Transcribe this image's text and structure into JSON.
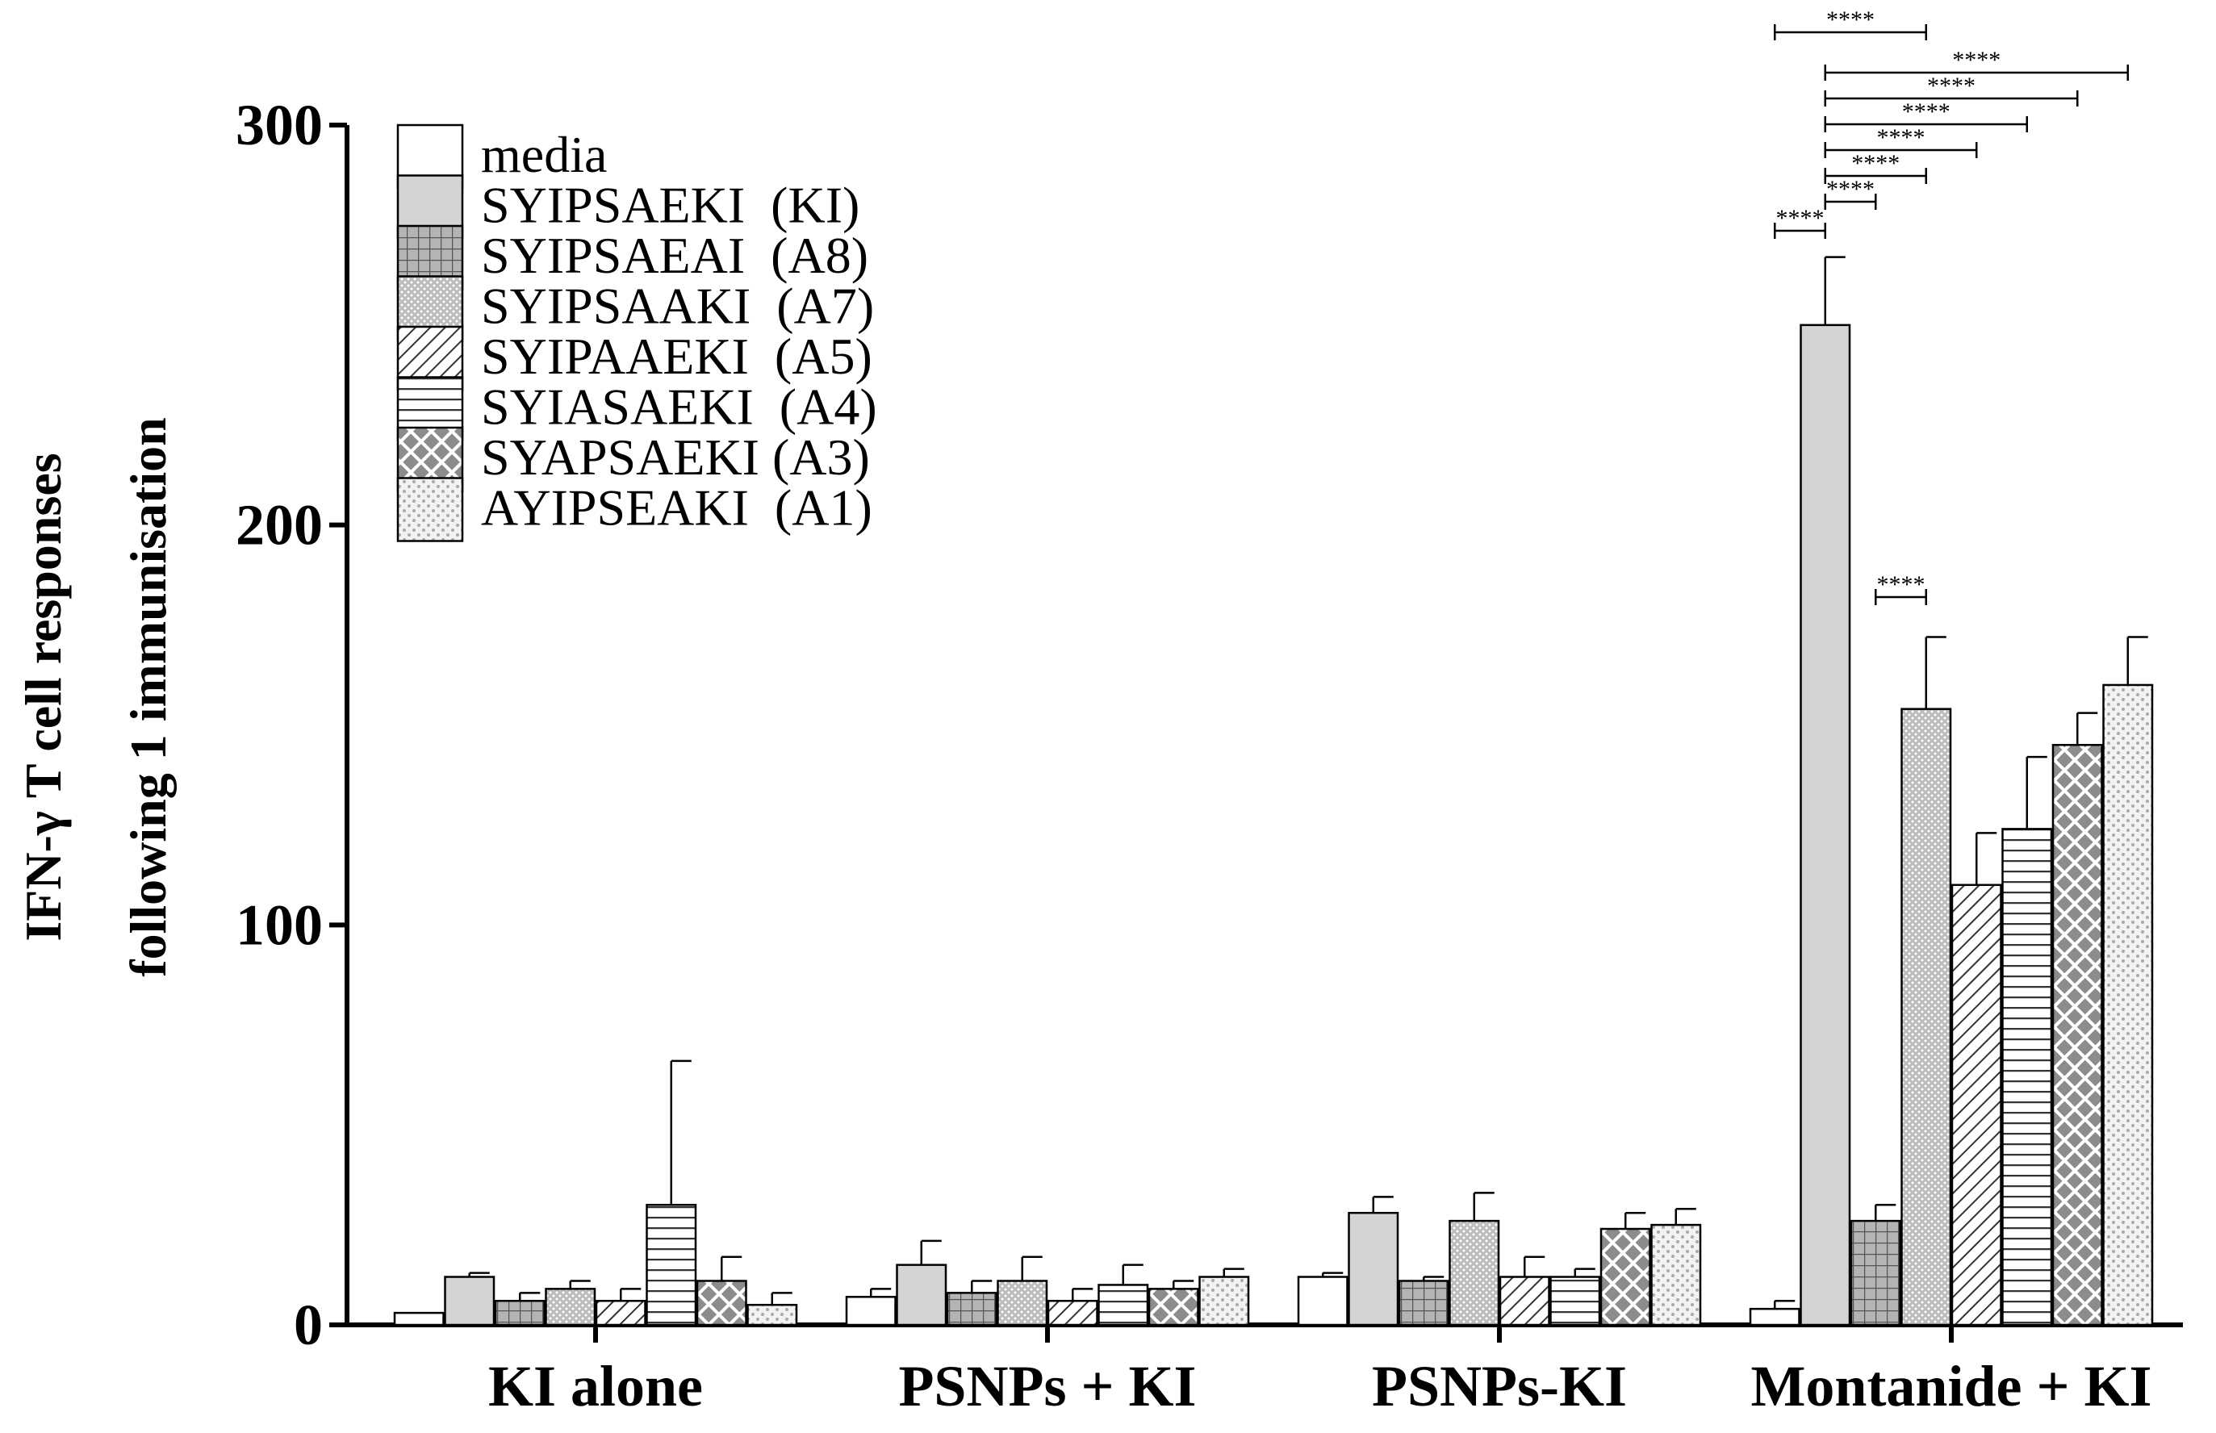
{
  "chart_data": {
    "type": "bar",
    "ylabel_lines": [
      "IFN-γ T cell responses",
      "following 1 immunisation"
    ],
    "xlabel": "",
    "ylim": [
      0,
      300
    ],
    "yticks": [
      0,
      100,
      200,
      300
    ],
    "grid": false,
    "legend_position": "top-left",
    "categories": [
      "KI alone",
      "PSNPs + KI",
      "PSNPs-KI",
      "Montanide + KI"
    ],
    "series": [
      {
        "name": "media",
        "pattern": "white",
        "values": [
          3,
          7,
          12,
          4
        ],
        "errors": [
          0,
          2,
          1,
          2
        ]
      },
      {
        "name": "SYIPSAEKI  (KI)",
        "pattern": "gray",
        "values": [
          12,
          15,
          28,
          250
        ],
        "errors": [
          1,
          6,
          4,
          17
        ]
      },
      {
        "name": "SYIPSAEAI  (A8)",
        "pattern": "grid",
        "values": [
          6,
          8,
          11,
          26
        ],
        "errors": [
          2,
          3,
          1,
          4
        ]
      },
      {
        "name": "SYIPSAAKI  (A7)",
        "pattern": "dots",
        "values": [
          9,
          11,
          26,
          154
        ],
        "errors": [
          2,
          6,
          7,
          18
        ]
      },
      {
        "name": "SYIPAAEKI  (A5)",
        "pattern": "diagonal",
        "values": [
          6,
          6,
          12,
          110
        ],
        "errors": [
          3,
          3,
          5,
          13
        ]
      },
      {
        "name": "SYIASAEKI  (A4)",
        "pattern": "horizontal",
        "values": [
          30,
          10,
          12,
          124
        ],
        "errors": [
          36,
          5,
          2,
          18
        ]
      },
      {
        "name": "SYAPSAEKI (A3)",
        "pattern": "crosshatch",
        "values": [
          11,
          9,
          24,
          145
        ],
        "errors": [
          6,
          2,
          4,
          8
        ]
      },
      {
        "name": "AYIPSEAKI  (A1)",
        "pattern": "light",
        "values": [
          5,
          12,
          25,
          160
        ],
        "errors": [
          3,
          2,
          4,
          12
        ]
      }
    ],
    "significance": [
      {
        "group": "Montanide + KI",
        "from": 0,
        "to": 1,
        "label": "****"
      },
      {
        "group": "Montanide + KI",
        "from": 1,
        "to": 2,
        "label": "****"
      },
      {
        "group": "Montanide + KI",
        "from": 1,
        "to": 3,
        "label": "****"
      },
      {
        "group": "Montanide + KI",
        "from": 1,
        "to": 4,
        "label": "****"
      },
      {
        "group": "Montanide + KI",
        "from": 1,
        "to": 5,
        "label": "****"
      },
      {
        "group": "Montanide + KI",
        "from": 1,
        "to": 6,
        "label": "****"
      },
      {
        "group": "Montanide + KI",
        "from": 1,
        "to": 7,
        "label": "****"
      },
      {
        "group": "Montanide + KI",
        "from": 0,
        "to": 3,
        "label": "****"
      },
      {
        "group": "Montanide + KI",
        "from": 2,
        "to": 3,
        "label": "****"
      }
    ]
  }
}
